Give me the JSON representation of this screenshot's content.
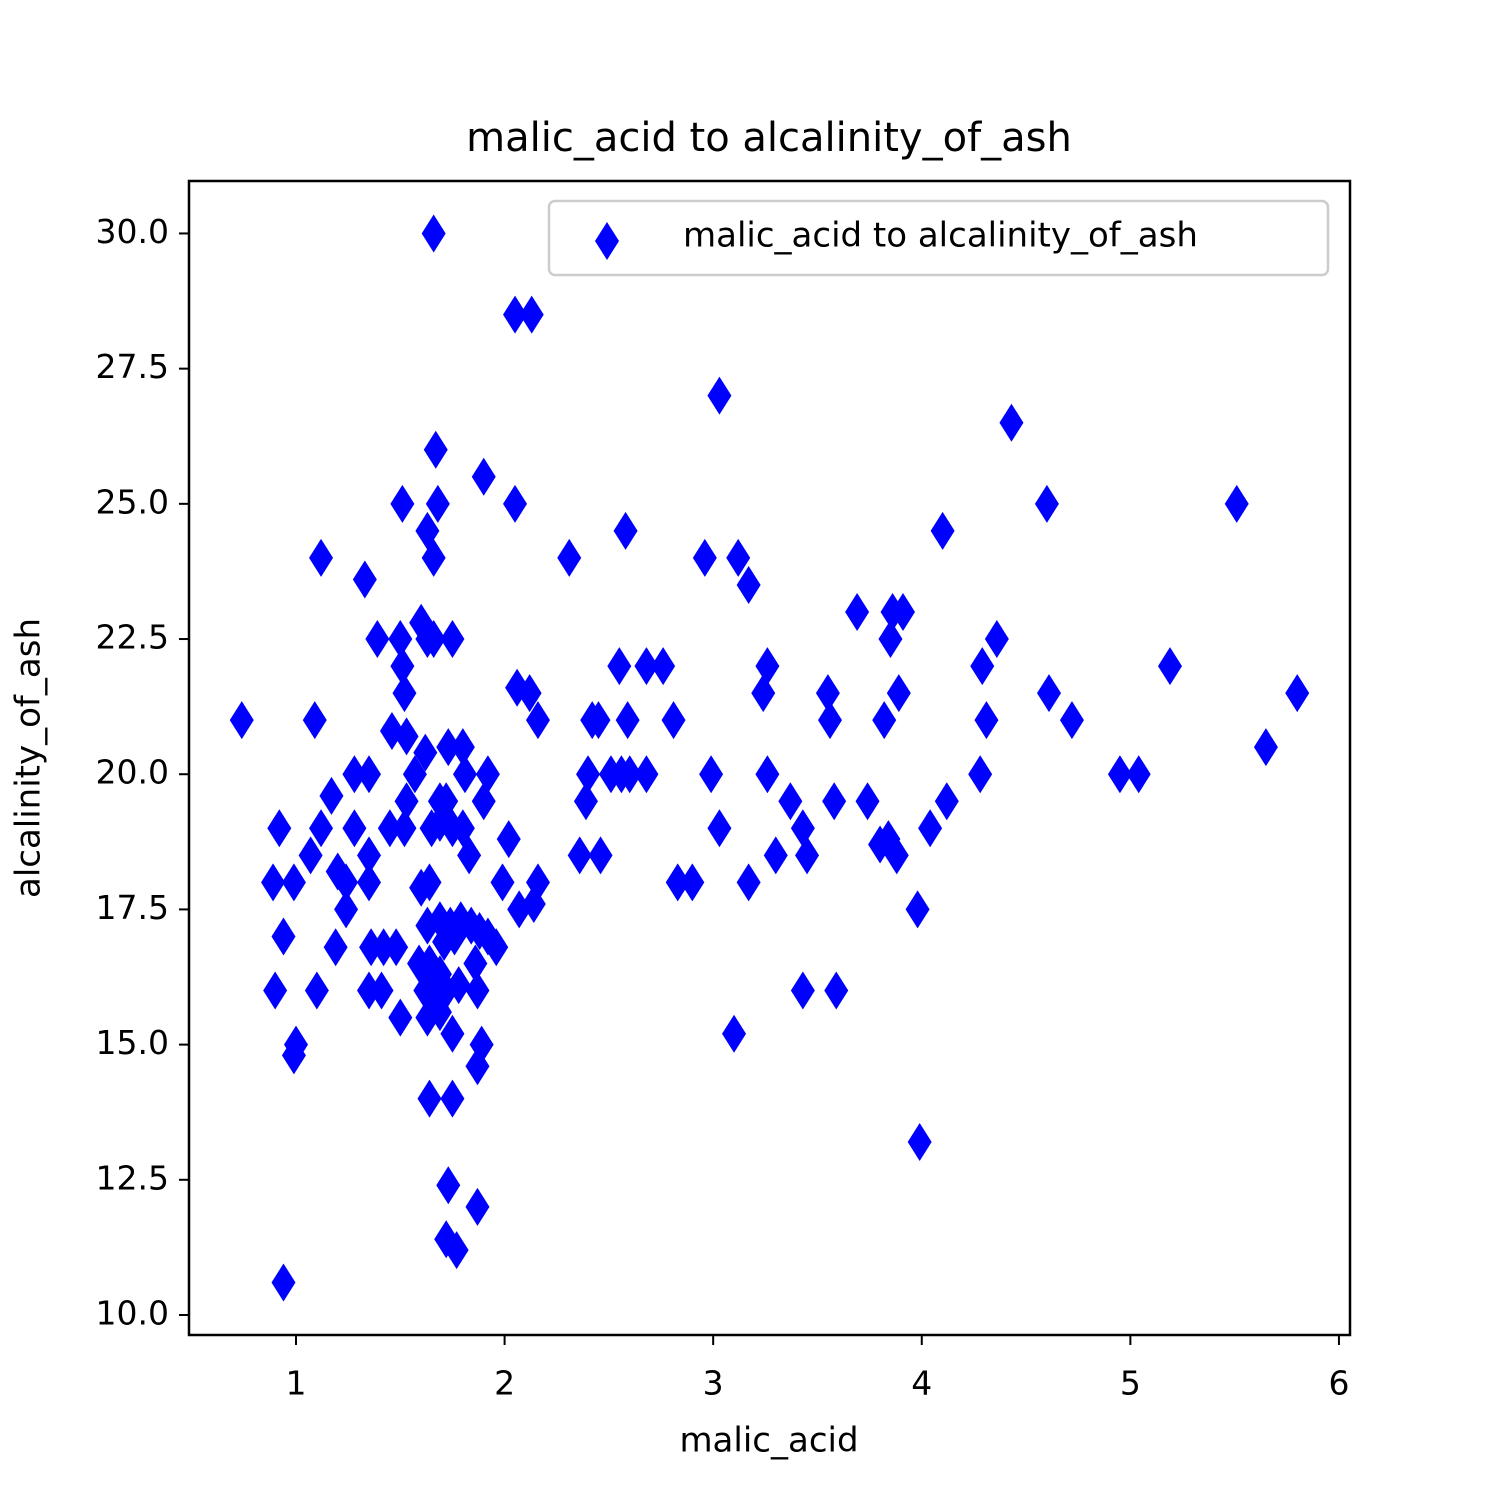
{
  "chart_data": {
    "type": "scatter",
    "title": "malic_acid to alcalinity_of_ash",
    "x_label": "malic_acid",
    "y_label": "alcalinity_of_ash",
    "legend": "upper right",
    "marker": "thin_diamond",
    "xlim": [
      0.487,
      6.053
    ],
    "ylim": [
      9.63,
      30.97
    ],
    "xticks": [
      1,
      2,
      3,
      4,
      5,
      6
    ],
    "yticks": [
      {
        "value": 10,
        "label": "10.0"
      },
      12.5,
      {
        "value": 15,
        "label": "15.0"
      },
      17.5,
      {
        "value": 20,
        "label": "20.0"
      },
      22.5,
      {
        "value": 25,
        "label": "25.0"
      },
      27.5,
      {
        "value": 30,
        "label": "30.0"
      }
    ],
    "series": [
      {
        "name": "malic_acid to alcalinity_of_ash",
        "color": "#0000ff",
        "x": [
          0.74,
          1.09,
          1.12,
          1.33,
          1.39,
          1.51,
          1.5,
          1.51,
          1.52,
          1.63,
          1.66,
          1.66,
          1.67,
          1.68,
          1.9,
          2.05,
          2.05,
          2.13,
          2.31,
          2.58,
          3.03,
          2.96,
          3.12,
          3.17,
          4.43,
          4.6,
          4.1,
          5.51,
          3.69,
          3.86,
          3.91,
          3.85,
          4.36,
          4.29,
          5.19,
          5.8,
          4.61,
          3.89,
          3.55,
          3.24,
          3.26,
          3.56,
          3.82,
          4.31,
          4.72,
          5.65,
          4.95,
          5.04,
          4.28,
          4.12,
          4.04,
          3.74,
          3.58,
          3.37,
          3.43,
          3.45,
          3.3,
          3.26,
          2.99,
          3.03,
          3.17,
          3.8,
          3.84,
          3.88,
          3.98,
          3.99,
          3.43,
          3.59,
          3.1,
          2.83,
          2.9,
          2.55,
          2.68,
          2.76,
          2.06,
          2.12,
          2.16,
          2.42,
          2.45,
          2.59,
          2.81,
          2.4,
          2.51,
          2.56,
          2.6,
          2.68,
          2.39,
          2.36,
          2.46,
          2.02,
          1.99,
          2.07,
          2.14,
          2.16,
          1.92,
          1.9,
          1.73,
          1.8,
          1.81,
          1.69,
          1.72,
          1.65,
          1.69,
          1.75,
          1.8,
          1.83,
          1.62,
          1.57,
          1.53,
          1.52,
          1.45,
          1.46,
          1.53,
          1.6,
          1.63,
          1.66,
          1.75,
          1.28,
          1.35,
          1.17,
          1.12,
          1.28,
          1.35,
          1.35,
          1.2,
          1.24,
          1.24,
          1.07,
          0.92,
          0.89,
          0.99,
          0.94,
          0.9,
          1.1,
          1.0,
          0.99,
          0.94,
          1.19,
          1.36,
          1.42,
          1.48,
          1.35,
          1.41,
          1.5,
          1.6,
          1.64,
          1.59,
          1.63,
          1.69,
          1.74,
          1.79,
          1.84,
          1.88,
          1.92,
          1.96,
          1.64,
          1.69,
          1.62,
          1.66,
          1.72,
          1.78,
          1.67,
          1.63,
          1.69,
          1.75,
          1.71,
          1.76,
          1.86,
          1.87,
          1.89,
          1.87,
          1.64,
          1.75,
          1.73,
          1.87,
          1.72,
          1.77
        ],
        "y": [
          21.0,
          21.0,
          24.0,
          23.6,
          22.5,
          25.0,
          22.5,
          22.0,
          21.5,
          24.5,
          24.0,
          30.0,
          26.0,
          25.0,
          25.5,
          25.0,
          28.5,
          28.5,
          24.0,
          24.5,
          27.0,
          24.0,
          24.0,
          23.5,
          26.5,
          25.0,
          24.5,
          25.0,
          23.0,
          23.0,
          23.0,
          22.5,
          22.5,
          22.0,
          22.0,
          21.5,
          21.5,
          21.5,
          21.5,
          21.5,
          22.0,
          21.0,
          21.0,
          21.0,
          21.0,
          20.5,
          20.0,
          20.0,
          20.0,
          19.5,
          19.0,
          19.5,
          19.5,
          19.5,
          19.0,
          18.5,
          18.5,
          20.0,
          20.0,
          19.0,
          18.0,
          18.7,
          18.8,
          18.5,
          17.5,
          13.2,
          16.0,
          16.0,
          15.2,
          18.0,
          18.0,
          22.0,
          22.0,
          22.0,
          21.6,
          21.5,
          21.0,
          21.0,
          21.0,
          21.0,
          21.0,
          20.0,
          20.0,
          20.0,
          20.0,
          20.0,
          19.5,
          18.5,
          18.5,
          18.8,
          18.0,
          17.5,
          17.6,
          18.0,
          20.0,
          19.5,
          20.5,
          20.5,
          20.0,
          19.5,
          19.5,
          19.0,
          19.1,
          19.0,
          19.0,
          18.5,
          20.4,
          20.0,
          19.5,
          19.0,
          19.0,
          20.8,
          20.7,
          22.8,
          22.5,
          22.5,
          22.5,
          20.0,
          20.0,
          19.6,
          19.0,
          19.0,
          18.5,
          18.0,
          18.2,
          18.0,
          17.5,
          18.5,
          19.0,
          18.0,
          18.0,
          17.0,
          16.0,
          16.0,
          15.0,
          14.8,
          10.6,
          16.8,
          16.8,
          16.8,
          16.8,
          16.0,
          16.0,
          15.5,
          17.9,
          18.0,
          16.5,
          17.2,
          17.3,
          17.2,
          17.3,
          17.2,
          17.1,
          17.0,
          16.8,
          16.5,
          16.3,
          16.0,
          16.0,
          16.0,
          16.1,
          15.8,
          15.5,
          15.6,
          15.2,
          16.9,
          17.0,
          16.5,
          16.0,
          15.0,
          14.6,
          14.0,
          14.0,
          12.4,
          12.0,
          11.4,
          11.2
        ]
      }
    ]
  }
}
